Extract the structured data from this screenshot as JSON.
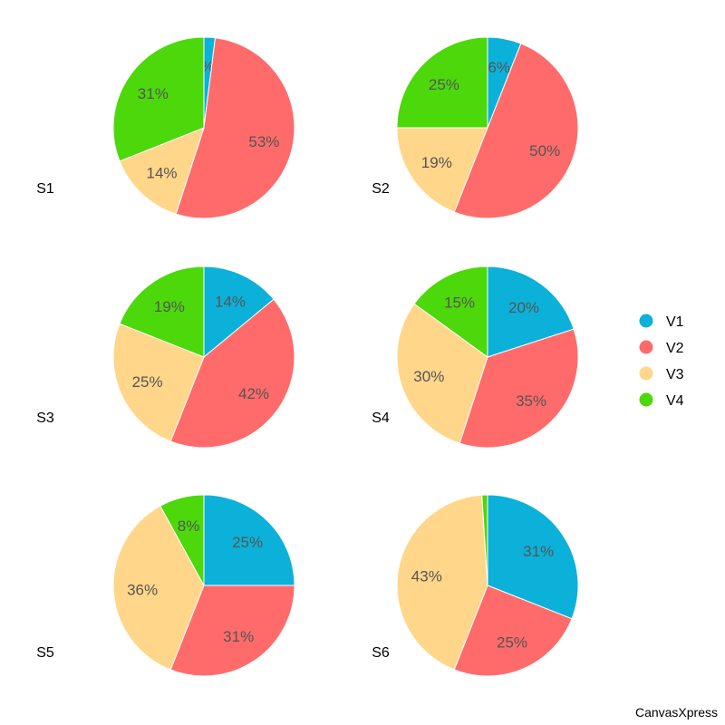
{
  "chart_data": {
    "type": "pie",
    "categories": [
      "V1",
      "V2",
      "V3",
      "V4"
    ],
    "colors": {
      "V1": "#0CB1D9",
      "V2": "#FF6B6B",
      "V3": "#FFD68A",
      "V4": "#4CD80B"
    },
    "legend_position": "right",
    "pies": [
      {
        "name": "S1",
        "values": [
          2,
          53,
          14,
          31
        ],
        "labels": [
          "%",
          "53%",
          "14%",
          "31%"
        ]
      },
      {
        "name": "S2",
        "values": [
          6,
          50,
          19,
          25
        ],
        "labels": [
          "6%",
          "50%",
          "19%",
          "25%"
        ]
      },
      {
        "name": "S3",
        "values": [
          14,
          42,
          25,
          19
        ],
        "labels": [
          "14%",
          "42%",
          "25%",
          "19%"
        ]
      },
      {
        "name": "S4",
        "values": [
          20,
          35,
          30,
          15
        ],
        "labels": [
          "20%",
          "35%",
          "30%",
          "15%"
        ]
      },
      {
        "name": "S5",
        "values": [
          25,
          31,
          36,
          8
        ],
        "labels": [
          "25%",
          "31%",
          "36%",
          "8%"
        ]
      },
      {
        "name": "S6",
        "values": [
          31,
          25,
          43,
          1
        ],
        "labels": [
          "31%",
          "25%",
          "43%",
          ""
        ]
      }
    ]
  },
  "credit": "CanvasXpress"
}
